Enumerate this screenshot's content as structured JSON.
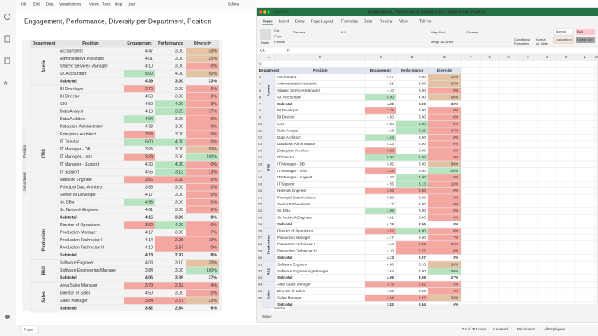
{
  "app": {
    "menu": [
      "File",
      "Edit",
      "Data",
      "Visualizations",
      "Views",
      "Tools",
      "Help",
      "User"
    ],
    "editing": "Editing",
    "title": "Engagement, Performance, Diversity per Department, Position",
    "side_tabs": [
      "Position",
      "Department"
    ],
    "page_tab": "Page",
    "status": [
      "310 of 311 rows",
      "0 marked",
      "39 columns",
      "AllEmployees"
    ]
  },
  "excel": {
    "window_title": "Engagement, Performance, Diversity per Department, Position",
    "autosave": "AutoSave",
    "tabs": [
      "Home",
      "Insert",
      "Draw",
      "Page Layout",
      "Formulas",
      "Data",
      "Review",
      "View",
      "Tell me"
    ],
    "ribbon": [
      "Paste",
      "Cut",
      "Copy",
      "Format",
      "Tahoma",
      "8.5",
      "Wrap Text",
      "General",
      "Merge & Center",
      "Conditional",
      "Formatting",
      "Format",
      "as Table",
      "Normal",
      "Bad",
      "Calculation",
      "Check Cell"
    ],
    "name_box": "Q17",
    "fx": "fx",
    "columns": [
      "A",
      "B",
      "C",
      "D",
      "E",
      "F",
      "G",
      "H",
      "I",
      "J",
      "K",
      "L",
      "M"
    ],
    "rows": [
      1,
      2,
      3,
      4,
      5,
      6,
      7,
      8,
      9,
      10,
      11,
      12,
      13,
      14,
      15,
      16,
      17,
      18,
      19,
      20,
      21,
      22,
      23,
      24,
      25,
      26,
      27,
      28,
      29,
      30,
      31,
      32,
      33,
      34,
      35,
      36
    ],
    "sheet": "Sheet1",
    "status": "Ready"
  },
  "table": {
    "headers": [
      "Department",
      "Position",
      "Engagement",
      "Performance",
      "Diversity"
    ],
    "palette": {
      "green": "#b7e4c0",
      "red": "#f3a7a0",
      "tan": "#e3c3a4",
      "none": "none"
    },
    "groups": [
      {
        "department": "Admin",
        "rows": [
          {
            "cells": [
              "Accountant I",
              "4.47",
              "3.00",
              "33%"
            ],
            "fills": [
              "none",
              "none",
              "tan"
            ]
          },
          {
            "cells": [
              "Administrative Assistant",
              "4.01",
              "3.00",
              "25%"
            ],
            "fills": [
              "none",
              "none",
              "tan"
            ]
          },
          {
            "cells": [
              "Shared Services Manager",
              "4.10",
              "3.00",
              "0%"
            ],
            "fills": [
              "none",
              "none",
              "red"
            ]
          },
          {
            "cells": [
              "Sr. Accountant",
              "5.00",
              "4.00",
              "50%"
            ],
            "fills": [
              "green",
              "none",
              "tan"
            ]
          },
          {
            "cells": [
              "Subtotal",
              "4.39",
              "3.00",
              "33%"
            ],
            "subtotal": true
          }
        ]
      },
      {
        "department": "IT/IS",
        "rows": [
          {
            "cells": [
              "BI Developer",
              "3.75",
              "3.00",
              "0%"
            ],
            "fills": [
              "red",
              "none",
              "red"
            ]
          },
          {
            "cells": [
              "BI Director",
              "4.50",
              "3.00",
              "0%"
            ],
            "fills": [
              "none",
              "none",
              "red"
            ]
          },
          {
            "cells": [
              "CIO",
              "4.50",
              "4.00",
              "0%"
            ],
            "fills": [
              "none",
              "green",
              "red"
            ]
          },
          {
            "cells": [
              "Data Analyst",
              "4.18",
              "3.25",
              "17%"
            ],
            "fills": [
              "none",
              "green",
              "red"
            ]
          },
          {
            "cells": [
              "Data Architect",
              "4.94",
              "3.00",
              "0%"
            ],
            "fills": [
              "green",
              "none",
              "red"
            ]
          },
          {
            "cells": [
              "Database Administrator",
              "4.33",
              "3.00",
              "0%"
            ],
            "fills": [
              "none",
              "none",
              "red"
            ]
          },
          {
            "cells": [
              "Enterprise Architect",
              "3.58",
              "3.00",
              "0%"
            ],
            "fills": [
              "red",
              "none",
              "red"
            ]
          },
          {
            "cells": [
              "IT Director",
              "5.00",
              "4.00",
              "0%"
            ],
            "fills": [
              "green",
              "green",
              "red"
            ]
          },
          {
            "cells": [
              "IT Manager - DB",
              "3.95",
              "3.00",
              "50%"
            ],
            "fills": [
              "none",
              "none",
              "tan"
            ]
          },
          {
            "cells": [
              "IT Manager - Infra",
              "3.39",
              "3.00",
              "100%"
            ],
            "fills": [
              "red",
              "none",
              "green"
            ]
          },
          {
            "cells": [
              "IT Manager - Support",
              "4.30",
              "4.00",
              "0%"
            ],
            "fills": [
              "none",
              "green",
              "red"
            ]
          },
          {
            "cells": [
              "IT Support",
              "4.55",
              "3.13",
              "13%"
            ],
            "fills": [
              "none",
              "green",
              "red"
            ]
          },
          {
            "cells": [
              "Network Engineer",
              "3.66",
              "2.60",
              "0%"
            ],
            "fills": [
              "red",
              "red",
              "red"
            ]
          },
          {
            "cells": [
              "Principal Data Architect",
              "3.88",
              "3.00",
              "0%"
            ],
            "fills": [
              "none",
              "none",
              "red"
            ]
          },
          {
            "cells": [
              "Senior BI Developer",
              "4.17",
              "3.00",
              "0%"
            ],
            "fills": [
              "none",
              "none",
              "red"
            ]
          },
          {
            "cells": [
              "Sr. DBA",
              "4.98",
              "3.00",
              "0%"
            ],
            "fills": [
              "green",
              "none",
              "red"
            ]
          },
          {
            "cells": [
              "Sr. Network Engineer",
              "4.61",
              "3.00",
              "0%"
            ],
            "fills": [
              "none",
              "none",
              "red"
            ]
          },
          {
            "cells": [
              "Subtotal",
              "4.15",
              "3.06",
              "8%"
            ],
            "subtotal": true
          }
        ]
      },
      {
        "department": "Production",
        "rows": [
          {
            "cells": [
              "Director of Operations",
              "3.92",
              "4.00",
              "0%"
            ],
            "fills": [
              "red",
              "green",
              "red"
            ]
          },
          {
            "cells": [
              "Production Manager",
              "4.17",
              "3.00",
              "7%"
            ],
            "fills": [
              "none",
              "none",
              "red"
            ]
          },
          {
            "cells": [
              "Production Technician I",
              "4.14",
              "2.95",
              "10%"
            ],
            "fills": [
              "none",
              "red",
              "red"
            ]
          },
          {
            "cells": [
              "Production Technician II",
              "4.10",
              "2.97",
              "0%"
            ],
            "fills": [
              "none",
              "red",
              "red"
            ]
          },
          {
            "cells": [
              "Subtotal",
              "4.13",
              "2.97",
              "8%"
            ],
            "subtotal": true
          }
        ]
      },
      {
        "department": "R&D",
        "rows": [
          {
            "cells": [
              "Software Engineer",
              "4.08",
              "3.10",
              "20%"
            ],
            "fills": [
              "none",
              "none",
              "tan"
            ]
          },
          {
            "cells": [
              "Software Engineering Manager",
              "3.84",
              "3.00",
              "100%"
            ],
            "fills": [
              "none",
              "none",
              "green"
            ]
          },
          {
            "cells": [
              "Subtotal",
              "4.06",
              "3.09",
              "27%"
            ],
            "subtotal": true
          }
        ]
      },
      {
        "department": "Sales",
        "rows": [
          {
            "cells": [
              "Area Sales Manager",
              "3.79",
              "2.82",
              "4%"
            ],
            "fills": [
              "red",
              "red",
              "red"
            ]
          },
          {
            "cells": [
              "Director of Sales",
              "4.50",
              "3.00",
              "0%"
            ],
            "fills": [
              "none",
              "none",
              "red"
            ]
          },
          {
            "cells": [
              "Sales Manager",
              "3.84",
              "2.67",
              "33%"
            ],
            "fills": [
              "red",
              "red",
              "tan"
            ]
          },
          {
            "cells": [
              "Subtotal",
              "3.82",
              "2.84",
              "6%"
            ],
            "subtotal": true
          }
        ]
      }
    ]
  }
}
